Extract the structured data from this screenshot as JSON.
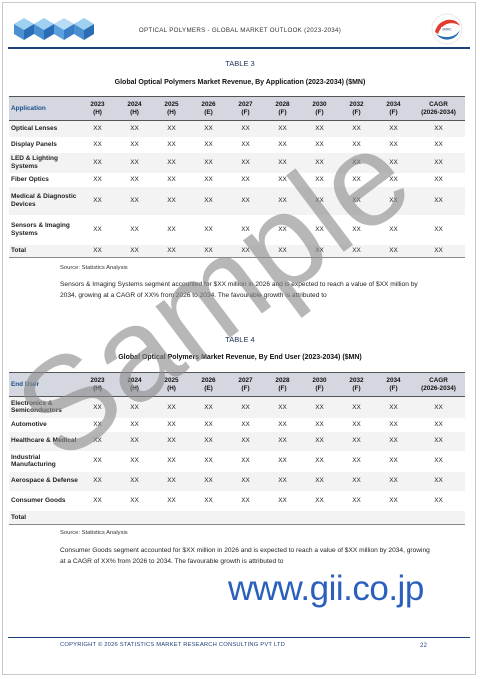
{
  "header": {
    "title": "OPTICAL POLYMERS - GLOBAL MARKET OUTLOOK (2023-2034)"
  },
  "colors": {
    "accent_navy": "#1f3f7a",
    "header_fill": "#d4d7df",
    "gii_blue": "#2b5fbd",
    "watermark_gray": "#8a8a8a"
  },
  "table3": {
    "label": "TABLE 3",
    "title": "Global Optical Polymers Market Revenue, By Application (2023-2034) ($MN)",
    "first_header": "Application",
    "columns": [
      {
        "year": "2023",
        "tag": "(H)"
      },
      {
        "year": "2024",
        "tag": "(H)"
      },
      {
        "year": "2025",
        "tag": "(H)"
      },
      {
        "year": "2026",
        "tag": "(E)"
      },
      {
        "year": "2027",
        "tag": "(F)"
      },
      {
        "year": "2028",
        "tag": "(F)"
      },
      {
        "year": "2030",
        "tag": "(F)"
      },
      {
        "year": "2032",
        "tag": "(F)"
      },
      {
        "year": "2034",
        "tag": "(F)"
      },
      {
        "year": "CAGR",
        "tag": "(2026-2034)"
      }
    ],
    "rows": [
      {
        "name": "Optical Lenses",
        "values": [
          "XX",
          "XX",
          "XX",
          "XX",
          "XX",
          "XX",
          "XX",
          "XX",
          "XX",
          "XX"
        ]
      },
      {
        "name": "Display Panels",
        "values": [
          "XX",
          "XX",
          "XX",
          "XX",
          "XX",
          "XX",
          "XX",
          "XX",
          "XX",
          "XX"
        ]
      },
      {
        "name": "LED & Lighting Systems",
        "values": [
          "XX",
          "XX",
          "XX",
          "XX",
          "XX",
          "XX",
          "XX",
          "XX",
          "XX",
          "XX"
        ]
      },
      {
        "name": "Fiber Optics",
        "values": [
          "XX",
          "XX",
          "XX",
          "XX",
          "XX",
          "XX",
          "XX",
          "XX",
          "XX",
          "XX"
        ]
      },
      {
        "name": "Medical & Diagnostic Devices",
        "values": [
          "XX",
          "XX",
          "XX",
          "XX",
          "XX",
          "XX",
          "XX",
          "XX",
          "XX",
          "XX"
        ]
      },
      {
        "name": "Sensors & Imaging Systems",
        "values": [
          "XX",
          "XX",
          "XX",
          "XX",
          "XX",
          "XX",
          "XX",
          "XX",
          "XX",
          "XX"
        ]
      },
      {
        "name": "Total",
        "values": [
          "XX",
          "XX",
          "XX",
          "XX",
          "XX",
          "XX",
          "XX",
          "XX",
          "XX",
          "XX"
        ]
      }
    ],
    "source": "Source: Statistics Analysis",
    "paragraph": "Sensors & Imaging Systems segment accounted for $XX million in 2026 and is expected to reach a value of $XX million by 2034, growing at a CAGR of XX% from 2026 to 2034. The favourable growth is attributed to"
  },
  "table4": {
    "label": "TABLE 4",
    "title": "Global Optical Polymers Market Revenue, By End User (2023-2034) ($MN)",
    "first_header": "End User",
    "columns": [
      {
        "year": "2023",
        "tag": "(H)"
      },
      {
        "year": "2024",
        "tag": "(H)"
      },
      {
        "year": "2025",
        "tag": "(H)"
      },
      {
        "year": "2026",
        "tag": "(E)"
      },
      {
        "year": "2027",
        "tag": "(F)"
      },
      {
        "year": "2028",
        "tag": "(F)"
      },
      {
        "year": "2030",
        "tag": "(F)"
      },
      {
        "year": "2032",
        "tag": "(F)"
      },
      {
        "year": "2034",
        "tag": "(F)"
      },
      {
        "year": "CAGR",
        "tag": "(2026-2034)"
      }
    ],
    "rows": [
      {
        "name": "Electronics & Semiconductors",
        "values": [
          "XX",
          "XX",
          "XX",
          "XX",
          "XX",
          "XX",
          "XX",
          "XX",
          "XX",
          "XX"
        ]
      },
      {
        "name": "Automotive",
        "values": [
          "XX",
          "XX",
          "XX",
          "XX",
          "XX",
          "XX",
          "XX",
          "XX",
          "XX",
          "XX"
        ]
      },
      {
        "name": "Healthcare & Medical",
        "values": [
          "XX",
          "XX",
          "XX",
          "XX",
          "XX",
          "XX",
          "XX",
          "XX",
          "XX",
          "XX"
        ]
      },
      {
        "name": "Industrial Manufacturing",
        "values": [
          "XX",
          "XX",
          "XX",
          "XX",
          "XX",
          "XX",
          "XX",
          "XX",
          "XX",
          "XX"
        ]
      },
      {
        "name": "Aerospace & Defense",
        "values": [
          "XX",
          "XX",
          "XX",
          "XX",
          "XX",
          "XX",
          "XX",
          "XX",
          "XX",
          "XX"
        ]
      },
      {
        "name": "Consumer Goods",
        "values": [
          "XX",
          "XX",
          "XX",
          "XX",
          "XX",
          "XX",
          "XX",
          "XX",
          "XX",
          "XX"
        ]
      },
      {
        "name": "Total",
        "values": [
          "",
          "",
          "",
          "",
          "",
          "",
          "",
          "",
          "",
          ""
        ]
      }
    ],
    "source": "Source: Statistics Analysis",
    "paragraph": "Consumer Goods segment accounted for $XX million in 2026 and is expected to reach a value of $XX million by 2034, growing at a CAGR of XX% from 2026 to 2034. The favourable growth is attributed to"
  },
  "watermark": {
    "text": "Sample",
    "gii_text": "www.gii.co.jp"
  },
  "footer": {
    "copyright": "COPYRIGHT © 2026 STATISTICS MARKET RESEARCH CONSULTING PVT LTD",
    "page_number": "22"
  },
  "icons": {
    "left_logo": "cubes-logo-icon",
    "right_logo": "circular-swoosh-logo-icon"
  }
}
